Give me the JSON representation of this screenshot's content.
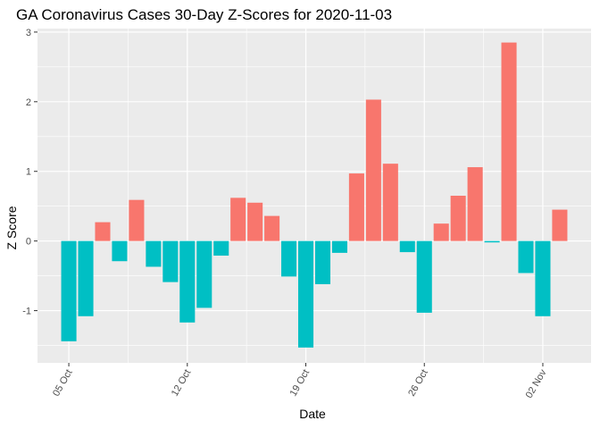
{
  "chart_data": {
    "type": "bar",
    "title": "GA Coronavirus Cases 30-Day Z-Scores for 2020-11-03",
    "xlabel": "Date",
    "ylabel": "Z Score",
    "ylim": [
      -1.75,
      3.05
    ],
    "yticks": [
      -1,
      0,
      1,
      2,
      3
    ],
    "grid": true,
    "legend": "none",
    "colors": {
      "positive": "#F8766D",
      "negative": "#00BFC4",
      "panel": "#EBEBEB",
      "grid": "#FFFFFF"
    },
    "xticks": [
      {
        "date": "2020-10-05",
        "label": "05 Oct"
      },
      {
        "date": "2020-10-12",
        "label": "12 Oct"
      },
      {
        "date": "2020-10-19",
        "label": "19 Oct"
      },
      {
        "date": "2020-10-26",
        "label": "26 Oct"
      },
      {
        "date": "2020-11-02",
        "label": "02 Nov"
      }
    ],
    "x": [
      "2020-10-05",
      "2020-10-06",
      "2020-10-07",
      "2020-10-08",
      "2020-10-09",
      "2020-10-10",
      "2020-10-11",
      "2020-10-12",
      "2020-10-13",
      "2020-10-14",
      "2020-10-15",
      "2020-10-16",
      "2020-10-17",
      "2020-10-18",
      "2020-10-19",
      "2020-10-20",
      "2020-10-21",
      "2020-10-22",
      "2020-10-23",
      "2020-10-24",
      "2020-10-25",
      "2020-10-26",
      "2020-10-27",
      "2020-10-28",
      "2020-10-29",
      "2020-10-30",
      "2020-10-31",
      "2020-11-01",
      "2020-11-02",
      "2020-11-03"
    ],
    "values": [
      -1.44,
      -1.08,
      0.27,
      -0.29,
      0.59,
      -0.37,
      -0.59,
      -1.17,
      -0.96,
      -0.21,
      0.62,
      0.55,
      0.36,
      -0.51,
      -1.53,
      -0.62,
      -0.17,
      0.97,
      2.03,
      1.11,
      -0.16,
      -1.03,
      0.25,
      0.65,
      1.06,
      -0.02,
      2.85,
      -0.46,
      -1.08,
      0.45
    ]
  }
}
